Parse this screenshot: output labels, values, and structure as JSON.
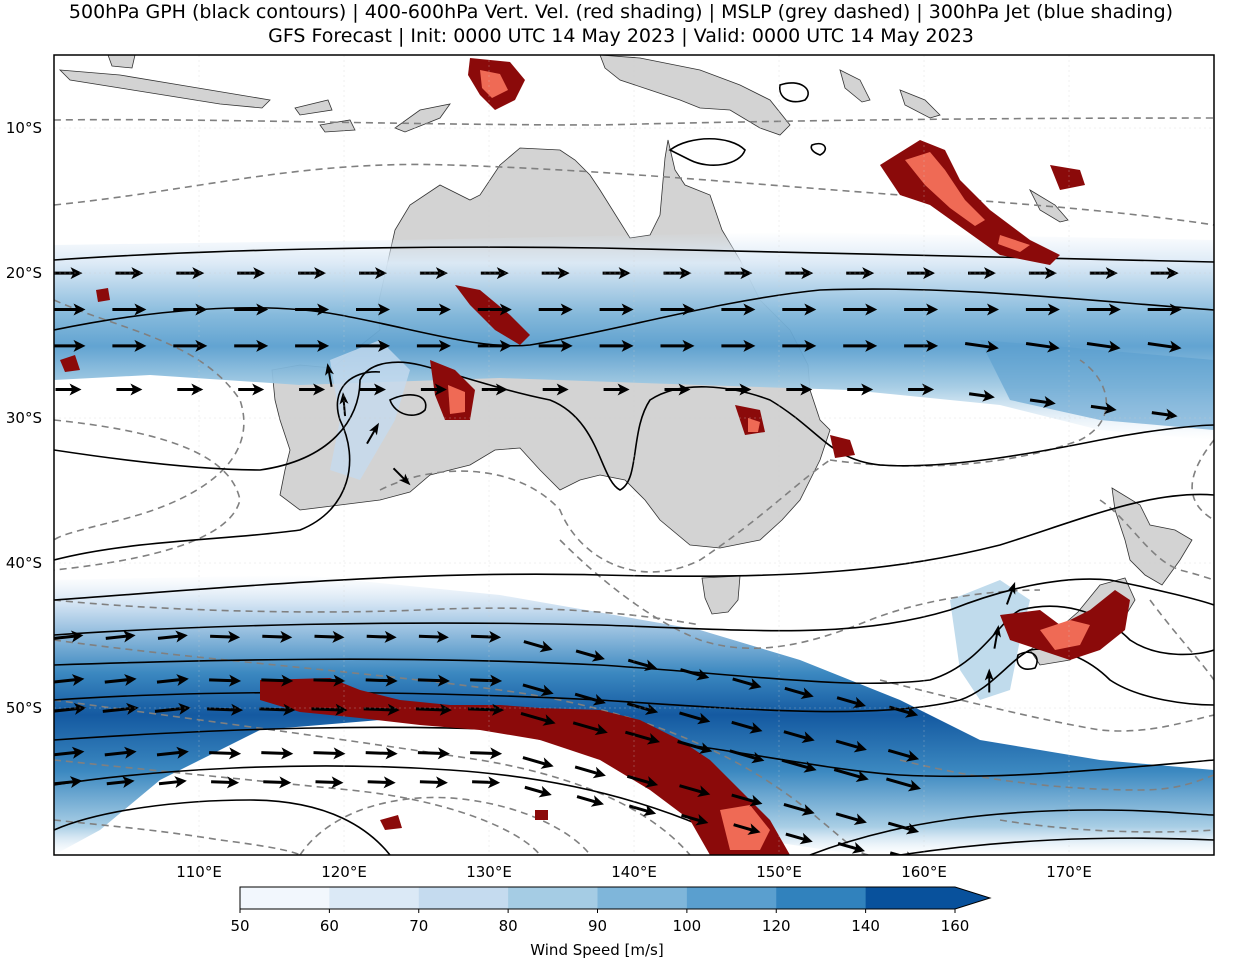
{
  "title": {
    "line1": "500hPa GPH (black contours) | 400-600hPa Vert. Vel. (red shading) | MSLP (grey dashed) | 300hPa Jet (blue shading)",
    "line2": "GFS Forecast | Init: 0000 UTC 14 May 2023 | Valid: 0000 UTC 14 May 2023"
  },
  "map": {
    "lon_range": [
      100,
      180
    ],
    "lat_range": [
      -60,
      -5
    ],
    "x_ticks": [
      {
        "lon": 110,
        "label": "110°E"
      },
      {
        "lon": 120,
        "label": "120°E"
      },
      {
        "lon": 130,
        "label": "130°E"
      },
      {
        "lon": 140,
        "label": "140°E"
      },
      {
        "lon": 150,
        "label": "150°E"
      },
      {
        "lon": 160,
        "label": "160°E"
      },
      {
        "lon": 170,
        "label": "170°E"
      }
    ],
    "y_ticks": [
      {
        "lat": -10,
        "label": "10°S"
      },
      {
        "lat": -20,
        "label": "20°S"
      },
      {
        "lat": -30,
        "label": "30°S"
      },
      {
        "lat": -40,
        "label": "40°S"
      },
      {
        "lat": -50,
        "label": "50°S"
      }
    ],
    "colors": {
      "land": "#d3d3d3",
      "gph_contour": "#000000",
      "mslp_contour": "#808080",
      "vv_dark": "#8b0a0a",
      "vv_light": "#ef6a55"
    }
  },
  "colorbar": {
    "label": "Wind Speed [m/s]",
    "levels": [
      50,
      60,
      70,
      80,
      90,
      100,
      120,
      140,
      160
    ],
    "colors": [
      "#f2f7fd",
      "#dbe9f6",
      "#c5dbef",
      "#a5cce4",
      "#7fb6da",
      "#5a9fcf",
      "#3182bd",
      "#08519c"
    ],
    "extend": "max"
  },
  "jet_streams": [
    {
      "lats": [
        -20,
        -22.5,
        -25,
        -28
      ],
      "lon_range": [
        100,
        180
      ]
    },
    {
      "lats": [
        -45,
        -48,
        -50,
        -53,
        -55
      ],
      "lon_range": [
        100,
        160
      ]
    }
  ]
}
